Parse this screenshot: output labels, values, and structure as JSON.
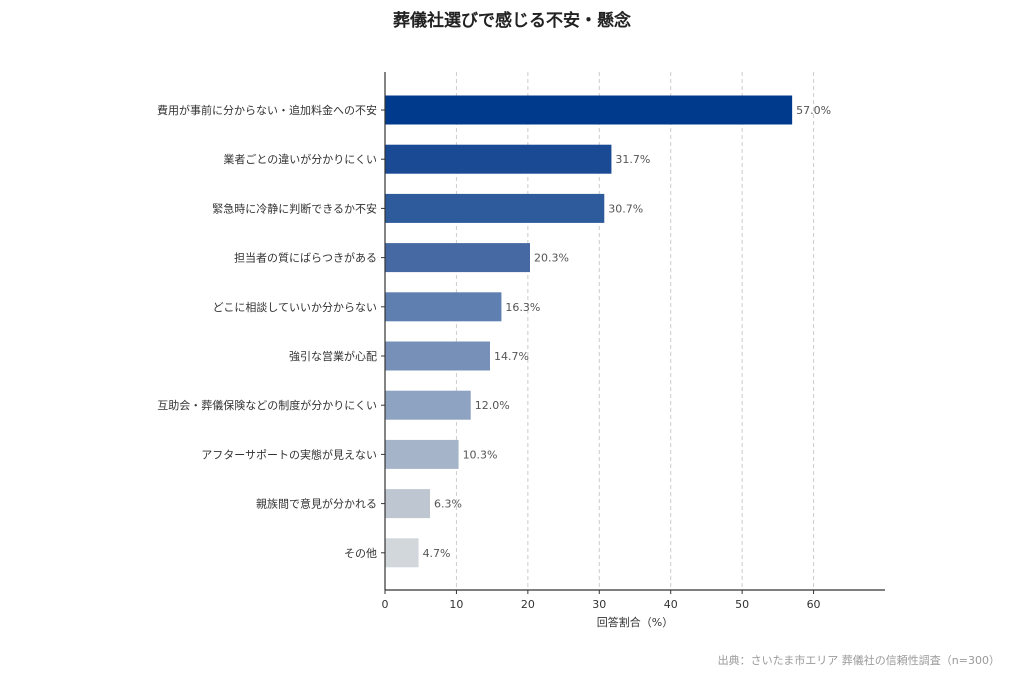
{
  "chart_data": {
    "type": "bar",
    "orientation": "horizontal",
    "title": "葬儀社選びで感じる不安・懸念",
    "xlabel": "回答割合（%）",
    "ylabel": "",
    "xlim": [
      0,
      70
    ],
    "xticks": [
      0,
      10,
      20,
      30,
      40,
      50,
      60
    ],
    "grid": "vertical dashed",
    "categories": [
      "費用が事前に分からない・追加料金への不安",
      "業者ごとの違いが分かりにくい",
      "緊急時に冷静に判断できるか不安",
      "担当者の質にばらつきがある",
      "どこに相談していいか分からない",
      "強引な営業が心配",
      "互助会・葬儀保険などの制度が分かりにくい",
      "アフターサポートの実態が見えない",
      "親族間で意見が分かれる",
      "その他"
    ],
    "values": [
      57.0,
      31.7,
      30.7,
      20.3,
      16.3,
      14.7,
      12.0,
      10.3,
      6.3,
      4.7
    ],
    "value_labels": [
      "57.0%",
      "31.7%",
      "30.7%",
      "20.3%",
      "16.3%",
      "14.7%",
      "12.0%",
      "10.3%",
      "6.3%",
      "4.7%"
    ],
    "colors": [
      "#003a8c",
      "#1a4a94",
      "#2e5b9c",
      "#4669a4",
      "#5f7fb0",
      "#7690b8",
      "#8ea3c2",
      "#a6b4ca",
      "#bec7d1",
      "#d2d7dc"
    ]
  },
  "source": "出典：さいたま市エリア 葬儀社の信頼性調査（n=300）"
}
